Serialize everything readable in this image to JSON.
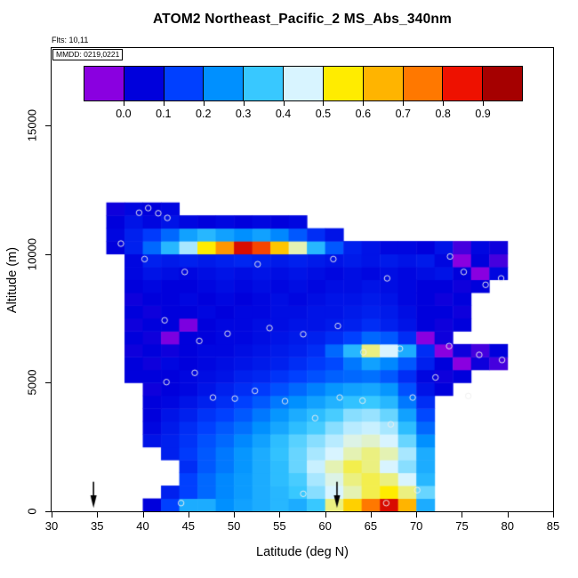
{
  "chart_data": {
    "type": "heatmap",
    "title": "ATOM2 Northeast_Pacific_2 MS_Abs_340nm",
    "annotations": {
      "flts": "Flts: 10,11",
      "mmdd": "MMDD: 0219,0221"
    },
    "xlabel": "Latitude (deg N)",
    "ylabel": "Altitude (m)",
    "xlim": [
      30,
      85
    ],
    "ylim": [
      0,
      18000
    ],
    "x_ticks": [
      30,
      35,
      40,
      45,
      50,
      55,
      60,
      65,
      70,
      75,
      80,
      85
    ],
    "y_ticks": [
      0,
      5000,
      10000,
      15000
    ],
    "colorbar": {
      "value_range": [
        -0.1,
        1.0
      ],
      "tick_labels": [
        "0.0",
        "0.1",
        "0.2",
        "0.3",
        "0.4",
        "0.5",
        "0.6",
        "0.7",
        "0.8",
        "0.9"
      ],
      "segment_colors": [
        "#8A00E0",
        "#0000DC",
        "#0040FF",
        "#0090FF",
        "#38C8FF",
        "#D8F4FF",
        "#FFEC00",
        "#FFB400",
        "#FF7800",
        "#EE1100",
        "#A50000"
      ]
    },
    "cell_size": {
      "lat": 2,
      "alt": 500
    },
    "lat_centers": [
      37,
      39,
      41,
      43,
      45,
      47,
      49,
      51,
      53,
      55,
      57,
      59,
      61,
      63,
      65,
      67,
      69,
      71,
      73,
      75,
      77,
      79
    ],
    "alt_centers": [
      250,
      750,
      1250,
      1750,
      2250,
      2750,
      3250,
      3750,
      4250,
      4750,
      5250,
      5750,
      6250,
      6750,
      7250,
      7750,
      8250,
      8750,
      9250,
      9750,
      10250,
      10750,
      11250,
      11750
    ],
    "values": [
      [
        null,
        null,
        0.05,
        0.15,
        0.3,
        0.3,
        0.25,
        0.28,
        0.3,
        0.32,
        0.3,
        0.35,
        0.5,
        0.6,
        0.75,
        0.88,
        0.65,
        0.3,
        null,
        null,
        null,
        null
      ],
      [
        null,
        null,
        null,
        0.1,
        0.15,
        0.2,
        0.24,
        0.27,
        0.3,
        0.32,
        0.35,
        0.4,
        0.45,
        0.48,
        0.52,
        0.55,
        0.5,
        0.38,
        null,
        null,
        null,
        null
      ],
      [
        null,
        null,
        null,
        null,
        0.15,
        0.2,
        0.24,
        0.27,
        0.3,
        0.33,
        0.36,
        0.42,
        0.46,
        0.5,
        0.52,
        0.5,
        0.45,
        0.32,
        null,
        null,
        null,
        null
      ],
      [
        null,
        null,
        null,
        null,
        0.12,
        0.18,
        0.22,
        0.26,
        0.3,
        0.33,
        0.38,
        0.44,
        0.48,
        0.52,
        0.5,
        0.45,
        0.4,
        0.3,
        null,
        null,
        null,
        null
      ],
      [
        null,
        null,
        null,
        0.1,
        0.14,
        0.18,
        0.22,
        0.26,
        0.3,
        0.34,
        0.38,
        0.42,
        0.45,
        0.48,
        0.5,
        0.48,
        0.42,
        0.3,
        null,
        null,
        null,
        null
      ],
      [
        null,
        null,
        0.08,
        0.1,
        0.13,
        0.17,
        0.2,
        0.24,
        0.28,
        0.33,
        0.37,
        0.4,
        0.43,
        0.46,
        0.47,
        0.45,
        0.38,
        0.25,
        null,
        null,
        null,
        null
      ],
      [
        null,
        null,
        0.06,
        0.09,
        0.12,
        0.15,
        0.18,
        0.21,
        0.25,
        0.29,
        0.33,
        0.36,
        0.4,
        0.43,
        0.44,
        0.42,
        0.33,
        0.2,
        null,
        null,
        null,
        null
      ],
      [
        null,
        null,
        0.05,
        0.08,
        0.1,
        0.13,
        0.15,
        0.18,
        0.22,
        0.26,
        0.3,
        0.33,
        0.36,
        0.4,
        0.41,
        0.38,
        0.28,
        0.16,
        null,
        null,
        null,
        null
      ],
      [
        null,
        null,
        0.05,
        0.06,
        0.08,
        0.1,
        0.12,
        0.15,
        0.18,
        0.22,
        0.25,
        0.28,
        0.31,
        0.34,
        0.35,
        0.32,
        0.22,
        0.12,
        null,
        null,
        null,
        null
      ],
      [
        null,
        null,
        0.04,
        0.05,
        0.06,
        0.08,
        0.1,
        0.12,
        0.14,
        0.17,
        0.2,
        0.23,
        0.26,
        0.28,
        0.29,
        0.26,
        0.17,
        0.08,
        0.05,
        null,
        null,
        null
      ],
      [
        null,
        0.05,
        0.05,
        0.05,
        0.06,
        0.07,
        0.08,
        0.1,
        0.11,
        0.13,
        0.15,
        0.17,
        0.19,
        0.2,
        0.21,
        0.18,
        0.12,
        0.06,
        0.04,
        0.05,
        null,
        null
      ],
      [
        null,
        0.05,
        0.04,
        0.06,
        0.05,
        0.06,
        0.07,
        0.08,
        0.09,
        0.1,
        0.12,
        0.14,
        0.16,
        0.22,
        0.28,
        0.24,
        0.18,
        0.1,
        0.05,
        -0.05,
        0.04,
        0.0
      ],
      [
        null,
        0.04,
        0.05,
        0.04,
        0.05,
        0.06,
        0.06,
        0.07,
        0.08,
        0.09,
        0.1,
        0.12,
        0.2,
        0.32,
        0.5,
        0.45,
        0.3,
        0.12,
        -0.05,
        0.04,
        0.0,
        0.05
      ],
      [
        null,
        0.05,
        0.04,
        -0.04,
        0.05,
        0.05,
        0.06,
        0.06,
        0.07,
        0.08,
        0.09,
        0.1,
        0.12,
        0.15,
        0.2,
        0.18,
        0.12,
        -0.05,
        0.04,
        null,
        null,
        null
      ],
      [
        null,
        0.04,
        0.05,
        0.05,
        -0.04,
        0.05,
        0.06,
        0.06,
        0.07,
        0.07,
        0.08,
        0.08,
        0.09,
        0.1,
        0.12,
        0.1,
        0.08,
        0.05,
        0.04,
        0.05,
        null,
        null
      ],
      [
        null,
        0.05,
        0.04,
        0.05,
        0.05,
        0.06,
        0.05,
        0.06,
        0.06,
        0.07,
        0.07,
        0.08,
        0.08,
        0.09,
        0.1,
        0.09,
        0.07,
        0.05,
        0.05,
        0.04,
        null,
        null
      ],
      [
        null,
        0.04,
        0.05,
        0.05,
        0.06,
        0.05,
        0.06,
        0.05,
        0.06,
        0.07,
        0.06,
        0.07,
        0.08,
        0.08,
        0.09,
        0.08,
        0.06,
        0.05,
        0.04,
        0.05,
        null,
        null
      ],
      [
        null,
        0.05,
        0.06,
        0.05,
        0.05,
        0.06,
        0.07,
        0.06,
        0.07,
        0.06,
        0.07,
        0.06,
        0.07,
        0.07,
        0.08,
        0.07,
        0.06,
        0.05,
        0.05,
        0.04,
        0.05,
        null
      ],
      [
        null,
        0.06,
        0.08,
        0.07,
        0.06,
        0.07,
        0.08,
        0.07,
        0.08,
        0.07,
        0.08,
        0.07,
        0.06,
        0.07,
        0.06,
        0.07,
        0.06,
        0.07,
        0.08,
        0.05,
        -0.05,
        0.06
      ],
      [
        null,
        0.06,
        0.1,
        0.09,
        0.1,
        0.09,
        0.1,
        0.11,
        0.1,
        0.09,
        0.1,
        0.09,
        0.08,
        0.09,
        0.08,
        0.09,
        0.08,
        0.09,
        0.06,
        -0.05,
        0.05,
        0.0
      ],
      [
        0.05,
        0.1,
        0.2,
        0.32,
        0.42,
        0.55,
        0.7,
        0.88,
        0.8,
        0.62,
        0.48,
        0.32,
        0.18,
        0.1,
        0.08,
        0.06,
        0.06,
        0.05,
        0.08,
        0.0,
        0.06,
        0.04
      ],
      [
        0.06,
        0.1,
        0.14,
        0.2,
        0.28,
        0.32,
        0.28,
        0.25,
        0.28,
        0.24,
        0.18,
        0.12,
        0.08,
        null,
        null,
        null,
        null,
        null,
        null,
        null,
        null,
        null
      ],
      [
        0.05,
        0.08,
        0.06,
        0.08,
        0.06,
        0.05,
        0.06,
        0.05,
        0.06,
        0.05,
        0.06,
        null,
        null,
        null,
        null,
        null,
        null,
        null,
        null,
        null,
        null,
        null
      ],
      [
        0.04,
        0.06,
        0.05,
        0.06,
        null,
        null,
        null,
        null,
        null,
        null,
        null,
        null,
        null,
        null,
        null,
        null,
        null,
        null,
        null,
        null,
        null,
        null
      ]
    ],
    "track_points": [
      [
        39.6,
        11600
      ],
      [
        40.6,
        11780
      ],
      [
        41.7,
        11580
      ],
      [
        42.7,
        11400
      ],
      [
        37.6,
        10400
      ],
      [
        40.2,
        9800
      ],
      [
        44.6,
        9300
      ],
      [
        52.6,
        9600
      ],
      [
        60.9,
        9800
      ],
      [
        66.8,
        9050
      ],
      [
        73.7,
        9900
      ],
      [
        75.2,
        9300
      ],
      [
        77.6,
        8800
      ],
      [
        79.3,
        9050
      ],
      [
        42.4,
        7420
      ],
      [
        46.2,
        6620
      ],
      [
        49.3,
        6900
      ],
      [
        53.9,
        7120
      ],
      [
        57.6,
        6880
      ],
      [
        61.4,
        7200
      ],
      [
        64.2,
        6180
      ],
      [
        68.2,
        6320
      ],
      [
        73.6,
        6420
      ],
      [
        76.9,
        6080
      ],
      [
        79.4,
        5880
      ],
      [
        42.6,
        5020
      ],
      [
        45.7,
        5380
      ],
      [
        47.7,
        4420
      ],
      [
        50.1,
        4380
      ],
      [
        52.3,
        4680
      ],
      [
        55.6,
        4280
      ],
      [
        58.9,
        3620
      ],
      [
        61.6,
        4420
      ],
      [
        64.1,
        4300
      ],
      [
        67.2,
        3380
      ],
      [
        69.6,
        4420
      ],
      [
        72.1,
        5200
      ],
      [
        75.7,
        4480
      ],
      [
        57.6,
        680
      ],
      [
        66.7,
        320
      ],
      [
        70.1,
        820
      ],
      [
        44.2,
        320
      ]
    ],
    "arrows_lat": [
      34.6,
      61.3
    ]
  }
}
